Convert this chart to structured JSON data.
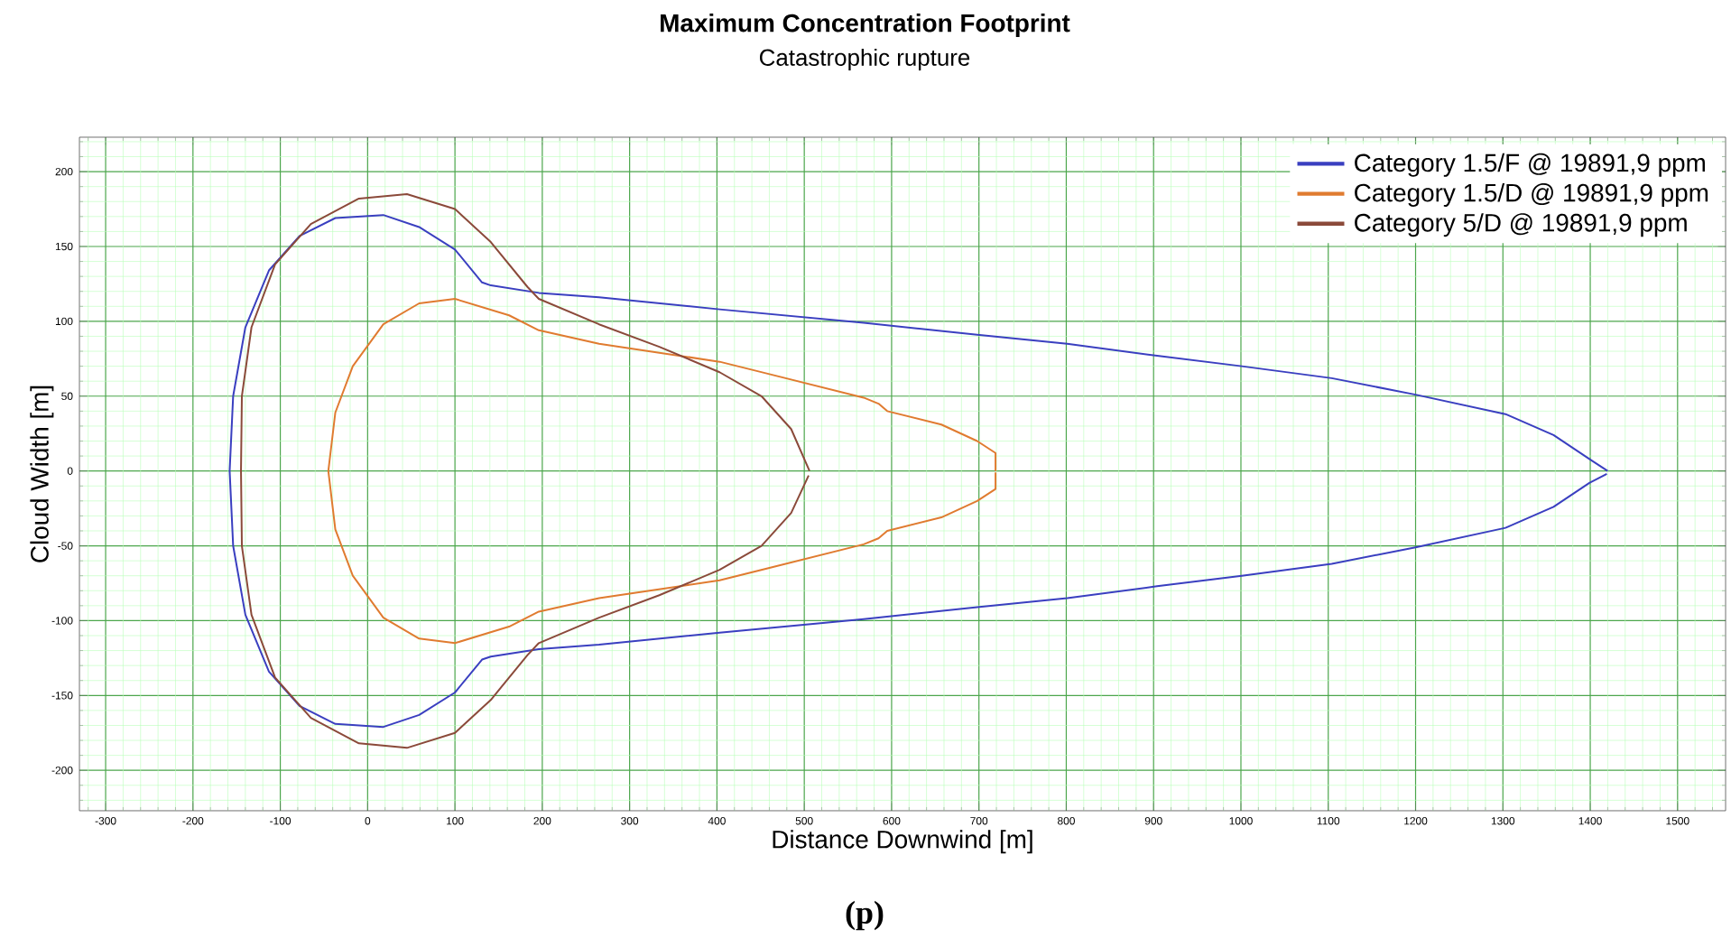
{
  "chart_data": {
    "type": "line",
    "title": "Maximum Concentration Footprint",
    "subtitle": "Catastrophic rupture",
    "xlabel": "Distance Downwind [m]",
    "ylabel": "Cloud Width [m]",
    "annotations": [
      "(p)"
    ],
    "xlim": [
      -330,
      1555
    ],
    "ylim": [
      -227,
      223
    ],
    "xticks": [
      -300,
      -200,
      -100,
      0,
      100,
      200,
      300,
      400,
      500,
      600,
      700,
      800,
      900,
      1000,
      1100,
      1200,
      1300,
      1400,
      1500,
      {
        "value": -320,
        "label": null
      },
      {
        "value": -280,
        "label": null
      },
      {
        "value": -260,
        "label": null
      },
      {
        "value": -240,
        "label": null
      },
      {
        "value": -220,
        "label": null
      },
      {
        "value": -180,
        "label": null
      },
      {
        "value": -160,
        "label": null
      },
      {
        "value": -140,
        "label": null
      },
      {
        "value": -120,
        "label": null
      },
      {
        "value": -80,
        "label": null
      },
      {
        "value": -60,
        "label": null
      },
      {
        "value": -40,
        "label": null
      },
      {
        "value": -20,
        "label": null
      },
      {
        "value": 20,
        "label": null
      },
      {
        "value": 40,
        "label": null
      },
      {
        "value": 60,
        "label": null
      },
      {
        "value": 80,
        "label": null
      },
      {
        "value": 120,
        "label": null
      },
      {
        "value": 140,
        "label": null
      },
      {
        "value": 160,
        "label": null
      },
      {
        "value": 180,
        "label": null
      },
      {
        "value": 220,
        "label": null
      },
      {
        "value": 240,
        "label": null
      },
      {
        "value": 260,
        "label": null
      },
      {
        "value": 280,
        "label": null
      },
      {
        "value": 320,
        "label": null
      },
      {
        "value": 340,
        "label": null
      },
      {
        "value": 360,
        "label": null
      },
      {
        "value": 380,
        "label": null
      },
      {
        "value": 420,
        "label": null
      },
      {
        "value": 440,
        "label": null
      },
      {
        "value": 460,
        "label": null
      },
      {
        "value": 480,
        "label": null
      },
      {
        "value": 520,
        "label": null
      },
      {
        "value": 540,
        "label": null
      },
      {
        "value": 560,
        "label": null
      },
      {
        "value": 580,
        "label": null
      },
      {
        "value": 620,
        "label": null
      },
      {
        "value": 640,
        "label": null
      },
      {
        "value": 660,
        "label": null
      },
      {
        "value": 680,
        "label": null
      },
      {
        "value": 720,
        "label": null
      },
      {
        "value": 740,
        "label": null
      },
      {
        "value": 760,
        "label": null
      },
      {
        "value": 780,
        "label": null
      },
      {
        "value": 820,
        "label": null
      },
      {
        "value": 840,
        "label": null
      },
      {
        "value": 860,
        "label": null
      },
      {
        "value": 880,
        "label": null
      },
      {
        "value": 920,
        "label": null
      },
      {
        "value": 940,
        "label": null
      },
      {
        "value": 960,
        "label": null
      },
      {
        "value": 980,
        "label": null
      },
      {
        "value": 1020,
        "label": null
      },
      {
        "value": 1040,
        "label": null
      },
      {
        "value": 1060,
        "label": null
      },
      {
        "value": 1080,
        "label": null
      },
      {
        "value": 1120,
        "label": null
      },
      {
        "value": 1140,
        "label": null
      },
      {
        "value": 1160,
        "label": null
      },
      {
        "value": 1180,
        "label": null
      },
      {
        "value": 1220,
        "label": null
      },
      {
        "value": 1240,
        "label": null
      },
      {
        "value": 1260,
        "label": null
      },
      {
        "value": 1280,
        "label": null
      },
      {
        "value": 1320,
        "label": null
      },
      {
        "value": 1340,
        "label": null
      },
      {
        "value": 1360,
        "label": null
      },
      {
        "value": 1380,
        "label": null
      },
      {
        "value": 1420,
        "label": null
      },
      {
        "value": 1440,
        "label": null
      },
      {
        "value": 1460,
        "label": null
      },
      {
        "value": 1480,
        "label": null
      },
      {
        "value": 1520,
        "label": null
      },
      {
        "value": 1540,
        "label": null
      }
    ],
    "yticks": [
      -200,
      -150,
      -100,
      -50,
      0,
      50,
      100,
      150,
      200,
      {
        "value": -220,
        "label": null
      },
      {
        "value": -210,
        "label": null
      },
      {
        "value": -190,
        "label": null
      },
      {
        "value": -180,
        "label": null
      },
      {
        "value": -170,
        "label": null
      },
      {
        "value": -160,
        "label": null
      },
      {
        "value": -140,
        "label": null
      },
      {
        "value": -130,
        "label": null
      },
      {
        "value": -120,
        "label": null
      },
      {
        "value": -110,
        "label": null
      },
      {
        "value": -90,
        "label": null
      },
      {
        "value": -80,
        "label": null
      },
      {
        "value": -70,
        "label": null
      },
      {
        "value": -60,
        "label": null
      },
      {
        "value": -40,
        "label": null
      },
      {
        "value": -30,
        "label": null
      },
      {
        "value": -20,
        "label": null
      },
      {
        "value": -10,
        "label": null
      },
      {
        "value": 10,
        "label": null
      },
      {
        "value": 20,
        "label": null
      },
      {
        "value": 30,
        "label": null
      },
      {
        "value": 40,
        "label": null
      },
      {
        "value": 60,
        "label": null
      },
      {
        "value": 70,
        "label": null
      },
      {
        "value": 80,
        "label": null
      },
      {
        "value": 90,
        "label": null
      },
      {
        "value": 110,
        "label": null
      },
      {
        "value": 120,
        "label": null
      },
      {
        "value": 130,
        "label": null
      },
      {
        "value": 140,
        "label": null
      },
      {
        "value": 160,
        "label": null
      },
      {
        "value": 170,
        "label": null
      },
      {
        "value": 180,
        "label": null
      },
      {
        "value": 190,
        "label": null
      },
      {
        "value": 210,
        "label": null
      },
      {
        "value": 220,
        "label": null
      }
    ],
    "grid": true,
    "legend": "top right",
    "marker": "none",
    "line_style": "solid",
    "series": [
      {
        "name": "Category 1.5/F @ 19891,9 ppm",
        "color": "#3a3fc0",
        "x": [
          1420,
          1399,
          1358,
          1303,
          1200,
          1104,
          1001,
          904,
          801,
          698,
          568,
          403,
          265,
          196,
          141,
          131,
          100,
          59,
          18,
          -37,
          -78,
          -113,
          -140,
          -154,
          -158,
          -154,
          -140,
          -113,
          -78,
          -37,
          18,
          59,
          100,
          131,
          141,
          196,
          265,
          403,
          568,
          698,
          801,
          904,
          1001,
          1104,
          1200,
          1303,
          1358,
          1399,
          1419
        ],
        "values": [
          0,
          8,
          24,
          38,
          51,
          62,
          70,
          77,
          85,
          91,
          99,
          108,
          116,
          119,
          124,
          126,
          148,
          163,
          171,
          169,
          157,
          134,
          96,
          50,
          0,
          -50,
          -96,
          -134,
          -157,
          -169,
          -171,
          -163,
          -148,
          -126,
          -124,
          -119,
          -116,
          -108,
          -99,
          -91,
          -85,
          -77,
          -70,
          -62,
          -51,
          -38,
          -24,
          -8,
          -2
        ]
      },
      {
        "name": "Category 1.5/D @ 19891,9 ppm",
        "color": "#e07b30",
        "x": [
          719,
          719,
          698,
          657,
          595,
          585,
          568,
          458,
          403,
          334,
          265,
          196,
          162,
          100,
          59,
          18,
          -17,
          -37,
          -45,
          -37,
          -17,
          18,
          59,
          100,
          162,
          196,
          265,
          300,
          403,
          458,
          568,
          585,
          595,
          657,
          698,
          719,
          719
        ],
        "values": [
          0,
          12,
          20,
          31,
          40,
          45,
          49,
          65,
          73,
          79,
          85,
          94,
          104,
          115,
          112,
          98,
          70,
          39,
          0,
          -39,
          -70,
          -98,
          -112,
          -115,
          -104,
          -94,
          -85,
          -82,
          -73,
          -65,
          -49,
          -45,
          -40,
          -31,
          -20,
          -12,
          -1
        ]
      },
      {
        "name": "Category 5/D @ 19891,9 ppm",
        "color": "#8b4a3a",
        "x": [
          506,
          485,
          451,
          403,
          334,
          265,
          196,
          183,
          141,
          100,
          45,
          -10,
          -65,
          -106,
          -133,
          -144,
          -145,
          -144,
          -133,
          -106,
          -65,
          -10,
          45,
          100,
          141,
          183,
          196,
          265,
          334,
          403,
          451,
          485,
          505
        ],
        "values": [
          0,
          28,
          50,
          66,
          83,
          98,
          115,
          123,
          153,
          175,
          185,
          182,
          165,
          138,
          96,
          50,
          0,
          -50,
          -96,
          -138,
          -165,
          -182,
          -185,
          -175,
          -153,
          -123,
          -115,
          -98,
          -83,
          -66,
          -50,
          -28,
          -3
        ]
      }
    ]
  }
}
